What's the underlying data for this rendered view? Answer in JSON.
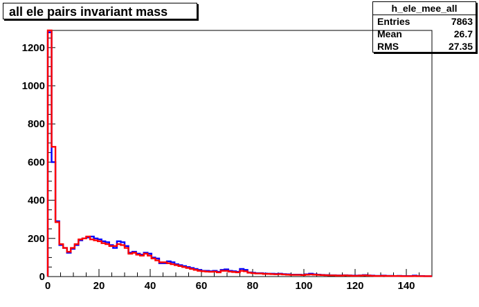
{
  "title": "all ele pairs invariant mass",
  "stats": {
    "name": "h_ele_mee_all",
    "rows": [
      {
        "label": "Entries",
        "value": "7863"
      },
      {
        "label": "Mean",
        "value": "26.7"
      },
      {
        "label": "RMS",
        "value": "27.35"
      }
    ]
  },
  "chart_data": {
    "type": "line",
    "title": "all ele pairs invariant mass",
    "xlabel": "",
    "ylabel": "",
    "xlim": [
      0,
      150
    ],
    "ylim": [
      0,
      1290
    ],
    "x_ticks": [
      "0",
      "20",
      "40",
      "60",
      "80",
      "100",
      "120",
      "140"
    ],
    "y_ticks": [
      "0",
      "200",
      "400",
      "600",
      "800",
      "1000",
      "1200"
    ],
    "bin_width": 1.5,
    "colors": {
      "blue": "#0000ff",
      "red": "#ff0000"
    },
    "series": [
      {
        "color": "blue",
        "x": [
          0,
          1.5,
          3,
          4.5,
          6,
          7.5,
          9,
          10.5,
          12,
          13.5,
          15,
          16.5,
          18,
          19.5,
          21,
          22.5,
          24,
          25.5,
          27,
          28.5,
          30,
          31.5,
          33,
          34.5,
          36,
          37.5,
          39,
          40.5,
          42,
          43.5,
          45,
          46.5,
          48,
          49.5,
          51,
          52.5,
          54,
          55.5,
          57,
          58.5,
          60,
          61.5,
          63,
          64.5,
          66,
          67.5,
          69,
          70.5,
          72,
          73.5,
          75,
          76.5,
          78,
          79.5,
          81,
          82.5,
          84,
          85.5,
          87,
          88.5,
          90,
          91.5,
          93,
          94.5,
          96,
          97.5,
          99,
          100.5,
          102,
          103.5,
          105,
          106.5,
          108,
          109.5,
          111,
          112.5,
          114,
          115.5,
          117,
          118.5,
          120,
          121.5,
          123,
          124.5,
          126,
          127.5,
          129,
          130.5,
          132,
          133.5,
          135,
          136.5,
          138,
          139.5,
          141,
          142.5,
          144,
          145.5,
          147,
          148.5
        ],
        "values": [
          1280,
          600,
          290,
          165,
          150,
          125,
          145,
          165,
          190,
          200,
          205,
          210,
          200,
          195,
          185,
          180,
          165,
          150,
          185,
          180,
          160,
          125,
          130,
          120,
          115,
          125,
          120,
          100,
          95,
          70,
          70,
          80,
          75,
          65,
          60,
          55,
          50,
          45,
          40,
          35,
          30,
          30,
          28,
          30,
          25,
          35,
          38,
          30,
          28,
          25,
          40,
          35,
          22,
          20,
          18,
          18,
          16,
          15,
          15,
          14,
          15,
          13,
          12,
          10,
          10,
          10,
          9,
          12,
          15,
          12,
          10,
          9,
          8,
          7,
          7,
          6,
          6,
          7,
          6,
          5,
          5,
          6,
          8,
          6,
          5,
          4,
          4,
          5,
          4,
          4,
          3,
          4,
          3,
          3,
          3,
          5,
          3,
          3,
          2,
          2
        ]
      },
      {
        "color": "red",
        "x": [
          0,
          1.5,
          3,
          4.5,
          6,
          7.5,
          9,
          10.5,
          12,
          13.5,
          15,
          16.5,
          18,
          19.5,
          21,
          22.5,
          24,
          25.5,
          27,
          28.5,
          30,
          31.5,
          33,
          34.5,
          36,
          37.5,
          39,
          40.5,
          42,
          43.5,
          45,
          46.5,
          48,
          49.5,
          51,
          52.5,
          54,
          55.5,
          57,
          58.5,
          60,
          61.5,
          63,
          64.5,
          66,
          67.5,
          69,
          70.5,
          72,
          73.5,
          75,
          76.5,
          78,
          79.5,
          81,
          82.5,
          84,
          85.5,
          87,
          88.5,
          90,
          91.5,
          93,
          94.5,
          96,
          97.5,
          99,
          100.5,
          102,
          103.5,
          105,
          106.5,
          108,
          109.5,
          111,
          112.5,
          114,
          115.5,
          117,
          118.5,
          120,
          121.5,
          123,
          124.5,
          126,
          127.5,
          129,
          130.5,
          132,
          133.5,
          135,
          136.5,
          138,
          139.5,
          141,
          142.5,
          144,
          145.5,
          147,
          148.5
        ],
        "values": [
          1290,
          680,
          285,
          170,
          150,
          130,
          150,
          170,
          195,
          200,
          210,
          195,
          190,
          185,
          175,
          170,
          160,
          160,
          170,
          165,
          150,
          120,
          125,
          115,
          110,
          120,
          110,
          95,
          85,
          75,
          75,
          70,
          65,
          60,
          55,
          50,
          45,
          40,
          35,
          30,
          28,
          26,
          25,
          26,
          22,
          30,
          30,
          26,
          24,
          22,
          30,
          28,
          20,
          18,
          16,
          16,
          14,
          14,
          13,
          12,
          13,
          11,
          10,
          9,
          9,
          9,
          8,
          10,
          11,
          10,
          9,
          8,
          7,
          6,
          6,
          5,
          5,
          6,
          5,
          4,
          4,
          5,
          6,
          5,
          4,
          3,
          3,
          4,
          3,
          3,
          3,
          3,
          2,
          2,
          2,
          3,
          2,
          2,
          2,
          2
        ]
      }
    ]
  }
}
